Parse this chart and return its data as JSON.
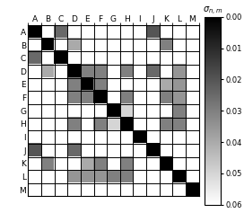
{
  "labels": [
    "A",
    "B",
    "C",
    "D",
    "E",
    "F",
    "G",
    "H",
    "I",
    "J",
    "K",
    "L",
    "M"
  ],
  "vmin": 0.0,
  "vmax": 0.06,
  "colorbar_ticks": [
    0.0,
    0.01,
    0.02,
    0.03,
    0.04,
    0.05,
    0.06
  ],
  "matrix": [
    [
      0.0,
      0.06,
      0.025,
      0.06,
      0.06,
      0.06,
      0.06,
      0.06,
      0.06,
      0.02,
      0.06,
      0.06,
      0.06
    ],
    [
      0.06,
      0.0,
      0.06,
      0.04,
      0.06,
      0.06,
      0.06,
      0.06,
      0.06,
      0.06,
      0.03,
      0.06,
      0.06
    ],
    [
      0.025,
      0.06,
      0.0,
      0.06,
      0.06,
      0.06,
      0.06,
      0.06,
      0.06,
      0.06,
      0.06,
      0.06,
      0.06
    ],
    [
      0.06,
      0.04,
      0.06,
      0.0,
      0.03,
      0.03,
      0.06,
      0.03,
      0.06,
      0.025,
      0.06,
      0.035,
      0.06
    ],
    [
      0.06,
      0.06,
      0.06,
      0.03,
      0.0,
      0.03,
      0.06,
      0.06,
      0.06,
      0.06,
      0.04,
      0.035,
      0.06
    ],
    [
      0.06,
      0.06,
      0.06,
      0.03,
      0.03,
      0.0,
      0.06,
      0.03,
      0.06,
      0.06,
      0.03,
      0.035,
      0.06
    ],
    [
      0.06,
      0.06,
      0.06,
      0.06,
      0.06,
      0.06,
      0.0,
      0.05,
      0.06,
      0.06,
      0.06,
      0.03,
      0.06
    ],
    [
      0.06,
      0.06,
      0.06,
      0.03,
      0.06,
      0.03,
      0.05,
      0.0,
      0.06,
      0.06,
      0.03,
      0.03,
      0.06
    ],
    [
      0.06,
      0.06,
      0.06,
      0.06,
      0.06,
      0.06,
      0.06,
      0.06,
      0.0,
      0.06,
      0.06,
      0.06,
      0.06
    ],
    [
      0.02,
      0.06,
      0.06,
      0.025,
      0.06,
      0.06,
      0.06,
      0.06,
      0.06,
      0.0,
      0.06,
      0.06,
      0.06
    ],
    [
      0.06,
      0.03,
      0.06,
      0.06,
      0.04,
      0.03,
      0.06,
      0.03,
      0.06,
      0.06,
      0.0,
      0.06,
      0.06
    ],
    [
      0.06,
      0.06,
      0.06,
      0.035,
      0.035,
      0.035,
      0.03,
      0.03,
      0.06,
      0.06,
      0.06,
      0.0,
      0.06
    ],
    [
      0.06,
      0.06,
      0.06,
      0.06,
      0.06,
      0.06,
      0.06,
      0.06,
      0.06,
      0.06,
      0.06,
      0.06,
      0.0
    ]
  ],
  "figsize": [
    2.72,
    2.37
  ],
  "dpi": 100
}
